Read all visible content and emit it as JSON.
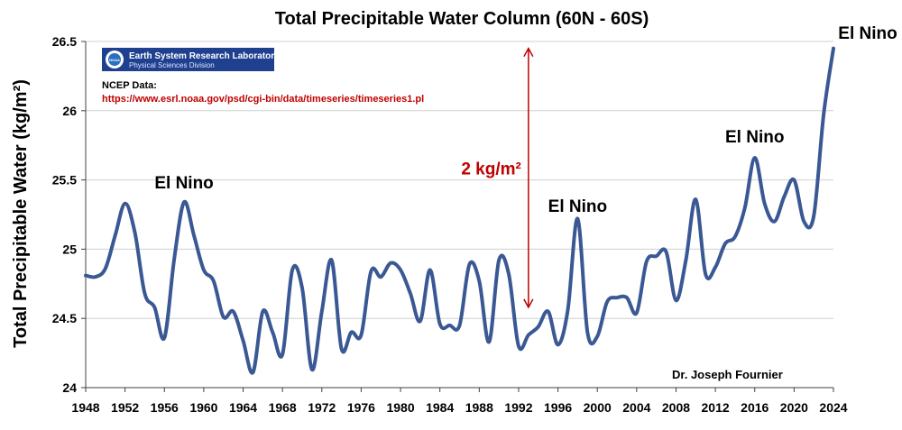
{
  "chart_data": {
    "type": "line",
    "title": "Total Precipitable Water Column (60N - 60S)",
    "xlabel": "",
    "ylabel": "Total Precipitable Water (kg/m²)",
    "xlim": [
      1948,
      2024
    ],
    "ylim": [
      24,
      26.5
    ],
    "x_ticks": [
      1948,
      1952,
      1956,
      1960,
      1964,
      1968,
      1972,
      1976,
      1980,
      1984,
      1988,
      1992,
      1996,
      2000,
      2004,
      2008,
      2012,
      2016,
      2020,
      2024
    ],
    "y_ticks": [
      24,
      24.5,
      25,
      25.5,
      26,
      26.5
    ],
    "y_tick_labels": [
      "24",
      "24.5",
      "25",
      "25.5",
      "26",
      "26.5"
    ],
    "grid": "horizontal",
    "series": [
      {
        "name": "Total Precipitable Water",
        "color": "#3a5894",
        "x": [
          1948,
          1949,
          1950,
          1951,
          1952,
          1953,
          1954,
          1955,
          1956,
          1957,
          1958,
          1959,
          1960,
          1961,
          1962,
          1963,
          1964,
          1965,
          1966,
          1967,
          1968,
          1969,
          1970,
          1971,
          1972,
          1973,
          1974,
          1975,
          1976,
          1977,
          1978,
          1979,
          1980,
          1981,
          1982,
          1983,
          1984,
          1985,
          1986,
          1987,
          1988,
          1989,
          1990,
          1991,
          1992,
          1993,
          1994,
          1995,
          1996,
          1997,
          1998,
          1999,
          2000,
          2001,
          2002,
          2003,
          2004,
          2005,
          2006,
          2007,
          2008,
          2009,
          2010,
          2011,
          2012,
          2013,
          2014,
          2015,
          2016,
          2017,
          2018,
          2019,
          2020,
          2021,
          2022,
          2023,
          2024
        ],
        "values": [
          24.81,
          24.8,
          24.86,
          25.1,
          25.33,
          25.12,
          24.68,
          24.58,
          24.36,
          24.93,
          25.34,
          25.1,
          24.85,
          24.77,
          24.51,
          24.55,
          24.34,
          24.11,
          24.55,
          24.4,
          24.24,
          24.85,
          24.72,
          24.13,
          24.55,
          24.92,
          24.28,
          24.4,
          24.38,
          24.84,
          24.8,
          24.9,
          24.85,
          24.68,
          24.48,
          24.85,
          24.46,
          24.45,
          24.45,
          24.89,
          24.77,
          24.33,
          24.92,
          24.82,
          24.3,
          24.38,
          24.44,
          24.55,
          24.31,
          24.56,
          25.22,
          24.4,
          24.37,
          24.62,
          24.65,
          24.65,
          24.54,
          24.91,
          24.95,
          24.98,
          24.63,
          24.92,
          25.36,
          24.82,
          24.87,
          25.04,
          25.09,
          25.3,
          25.66,
          25.33,
          25.2,
          25.38,
          25.5,
          25.2,
          25.24,
          25.97,
          26.45
        ]
      }
    ],
    "annotations": [
      {
        "text": "El Nino",
        "x": 1958,
        "y": 25.44
      },
      {
        "text": "El Nino",
        "x": 1998,
        "y": 25.27
      },
      {
        "text": "El Nino",
        "x": 2016,
        "y": 25.77
      },
      {
        "text": "El Nino",
        "x": 2024,
        "y": 26.52
      }
    ],
    "range_arrow": {
      "x": 1993,
      "y_from": 24.58,
      "y_to": 26.45,
      "label": "2 kg/m²",
      "color": "#c00000"
    },
    "credit": "Dr. Joseph Fournier",
    "source": {
      "logo_org": "NOAA",
      "logo_title": "Earth System Research Laboratory",
      "logo_subtitle": "Physical Sciences Division",
      "label": "NCEP Data:",
      "url": "https://www.esrl.noaa.gov/psd/cgi-bin/data/timeseries/timeseries1.pl"
    }
  }
}
